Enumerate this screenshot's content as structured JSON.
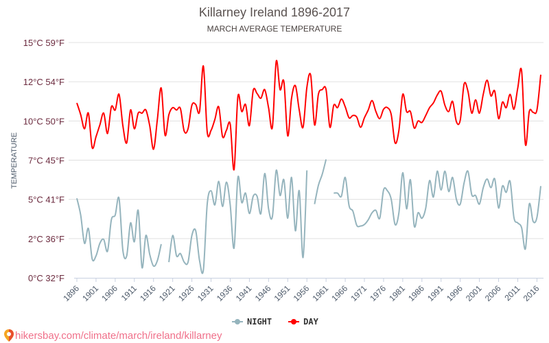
{
  "chart_data": {
    "type": "line",
    "title": "Killarney Ireland 1896-2017",
    "subtitle": "MARCH AVERAGE TEMPERATURE",
    "ylabel": "TEMPERATURE",
    "xlabel": "",
    "ylim": [
      0,
      15
    ],
    "xlim": [
      1896,
      2017
    ],
    "grid": true,
    "legend_position": "bottom",
    "y_ticks": [
      {
        "value": 0,
        "label": "0°C 32°F"
      },
      {
        "value": 2.5,
        "label": "2°C 36°F"
      },
      {
        "value": 5,
        "label": "5°C 41°F"
      },
      {
        "value": 7.5,
        "label": "7°C 45°F"
      },
      {
        "value": 10,
        "label": "10°C 50°F"
      },
      {
        "value": 12.5,
        "label": "12°C 54°F"
      },
      {
        "value": 15,
        "label": "15°C 59°F"
      }
    ],
    "x_ticks": [
      "1896",
      "1901",
      "1906",
      "1911",
      "1916",
      "1921",
      "1926",
      "1931",
      "1936",
      "1941",
      "1946",
      "1951",
      "1956",
      "1961",
      "1966",
      "1971",
      "1976",
      "1981",
      "1986",
      "1991",
      "1996",
      "2001",
      "2006",
      "2011",
      "2016"
    ],
    "x_start": 1896,
    "series": [
      {
        "name": "NIGHT",
        "color": "#95b4bd",
        "values": [
          5.07,
          4.0,
          2.2,
          3.15,
          1.2,
          1.4,
          2.2,
          2.45,
          1.7,
          3.7,
          4.0,
          5.07,
          1.75,
          1.4,
          3.5,
          2.3,
          4.3,
          0.65,
          2.7,
          1.5,
          0.75,
          1.1,
          2.15,
          null,
          1.0,
          2.7,
          1.4,
          1.55,
          1.0,
          1.0,
          2.7,
          3.0,
          1.1,
          0.5,
          4.7,
          5.55,
          4.65,
          6.15,
          4.55,
          6.1,
          4.65,
          1.9,
          6.4,
          4.8,
          5.4,
          4.1,
          5.2,
          5.2,
          4.1,
          6.65,
          4.4,
          3.9,
          6.85,
          5.25,
          6.25,
          3.8,
          6.4,
          3.0,
          5.55,
          1.3,
          6.85,
          null,
          4.7,
          5.9,
          6.6,
          7.55,
          null,
          5.4,
          5.4,
          5.2,
          6.4,
          4.6,
          4.25,
          3.35,
          3.3,
          3.4,
          3.7,
          4.15,
          4.3,
          3.8,
          5.6,
          5.55,
          5.0,
          3.4,
          4.15,
          6.7,
          4.4,
          6.25,
          3.3,
          4.15,
          3.8,
          4.45,
          6.2,
          5.15,
          6.8,
          5.6,
          6.8,
          5.5,
          6.4,
          5.0,
          4.7,
          6.05,
          6.8,
          5.3,
          5.25,
          4.7,
          5.75,
          6.3,
          5.75,
          6.3,
          4.45,
          5.85,
          5.45,
          6.15,
          3.85,
          3.5,
          3.2,
          1.85,
          4.7,
          3.6,
          3.85,
          5.85
        ]
      },
      {
        "name": "DAY",
        "color": "#ff0000",
        "values": [
          11.15,
          10.4,
          9.5,
          10.5,
          8.3,
          9.0,
          9.75,
          10.5,
          9.2,
          10.9,
          10.7,
          11.7,
          9.7,
          8.6,
          10.7,
          9.5,
          10.5,
          10.5,
          10.7,
          9.7,
          8.2,
          10.1,
          12.1,
          9.1,
          10.4,
          10.85,
          10.7,
          10.8,
          9.35,
          9.5,
          11.0,
          11.05,
          10.6,
          13.5,
          9.3,
          9.4,
          10.1,
          10.9,
          9.0,
          9.4,
          9.8,
          6.9,
          11.55,
          10.6,
          11.05,
          9.7,
          11.95,
          11.75,
          11.45,
          12.0,
          10.85,
          9.6,
          13.8,
          12.0,
          12.5,
          9.05,
          11.45,
          12.25,
          10.7,
          9.6,
          12.15,
          12.9,
          9.75,
          11.7,
          12.0,
          12.0,
          9.6,
          11.0,
          10.85,
          11.4,
          10.9,
          10.2,
          10.35,
          10.25,
          9.6,
          10.2,
          10.7,
          11.3,
          10.6,
          10.15,
          10.75,
          10.85,
          10.4,
          8.6,
          9.4,
          11.7,
          10.6,
          10.6,
          9.55,
          10.0,
          9.9,
          10.35,
          10.85,
          11.15,
          11.65,
          11.9,
          11.0,
          10.6,
          11.25,
          9.95,
          10.05,
          12.35,
          11.9,
          10.5,
          11.35,
          10.5,
          11.7,
          12.6,
          11.6,
          11.9,
          10.15,
          11.2,
          10.85,
          11.7,
          10.75,
          12.1,
          13.2,
          8.5,
          10.6,
          10.55,
          10.7,
          12.95
        ]
      }
    ]
  },
  "legend": {
    "night": "NIGHT",
    "day": "DAY"
  },
  "source": {
    "text": "hikersbay.com/climate/march/ireland/killarney",
    "icon": "map-pin-icon"
  }
}
